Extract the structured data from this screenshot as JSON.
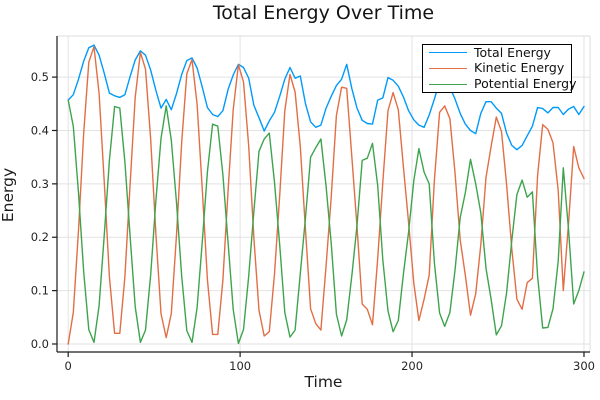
{
  "title": "Total Energy Over Time",
  "axes": {
    "x": {
      "label": "Time",
      "tick_labels": [
        "0",
        "100",
        "200",
        "300"
      ],
      "tick_values": [
        0,
        100,
        200,
        300
      ]
    },
    "y": {
      "label": "Energy",
      "tick_labels": [
        "0.0",
        "0.1",
        "0.2",
        "0.3",
        "0.4",
        "0.5"
      ],
      "tick_values": [
        0,
        0.1,
        0.2,
        0.3,
        0.4,
        0.5
      ]
    }
  },
  "legend": {
    "position": "top-right",
    "entries": [
      {
        "label": "Total Energy",
        "color": "#009AFA"
      },
      {
        "label": "Kinetic Energy",
        "color": "#E26E46"
      },
      {
        "label": "Potential Energy",
        "color": "#3DA44D"
      }
    ]
  },
  "colors": {
    "axis": "#1b1b1b",
    "grid": "#e2e2e2",
    "frame_light": "#dcdcdc",
    "tick_text": "#262626",
    "background": "#ffffff",
    "legend_border": "#000000"
  },
  "chart_data": {
    "type": "line",
    "title": "Total Energy Over Time",
    "xlabel": "Time",
    "ylabel": "Energy",
    "xlim": [
      -6.5,
      303.5
    ],
    "ylim": [
      -0.015,
      0.577
    ],
    "grid": true,
    "legend_position": "top-right",
    "x": [
      0,
      3,
      6,
      9,
      12,
      15,
      18,
      21,
      24,
      27,
      30,
      33,
      36,
      39,
      42,
      45,
      48,
      51,
      54,
      57,
      60,
      63,
      66,
      69,
      72,
      75,
      78,
      81,
      84,
      87,
      90,
      93,
      96,
      99,
      102,
      105,
      108,
      111,
      114,
      117,
      120,
      123,
      126,
      129,
      132,
      135,
      138,
      141,
      144,
      147,
      150,
      153,
      156,
      159,
      162,
      165,
      168,
      171,
      174,
      177,
      180,
      183,
      186,
      189,
      192,
      195,
      198,
      201,
      204,
      207,
      210,
      213,
      216,
      219,
      222,
      225,
      228,
      231,
      234,
      237,
      240,
      243,
      246,
      249,
      252,
      255,
      258,
      261,
      264,
      267,
      270,
      273,
      276,
      279,
      282,
      285,
      288,
      291,
      294,
      297,
      300
    ],
    "series": [
      {
        "name": "Total Energy",
        "color": "#009AFA",
        "values": [
          0.457,
          0.467,
          0.496,
          0.53,
          0.555,
          0.56,
          0.541,
          0.507,
          0.47,
          0.465,
          0.462,
          0.467,
          0.501,
          0.532,
          0.549,
          0.541,
          0.513,
          0.475,
          0.442,
          0.458,
          0.439,
          0.469,
          0.505,
          0.531,
          0.536,
          0.517,
          0.481,
          0.443,
          0.43,
          0.426,
          0.437,
          0.477,
          0.504,
          0.524,
          0.518,
          0.498,
          0.447,
          0.424,
          0.399,
          0.418,
          0.434,
          0.464,
          0.496,
          0.518,
          0.498,
          0.502,
          0.451,
          0.416,
          0.406,
          0.41,
          0.442,
          0.464,
          0.484,
          0.496,
          0.524,
          0.478,
          0.442,
          0.419,
          0.413,
          0.412,
          0.457,
          0.461,
          0.499,
          0.494,
          0.483,
          0.463,
          0.437,
          0.42,
          0.41,
          0.406,
          0.429,
          0.459,
          0.492,
          0.479,
          0.481,
          0.459,
          0.432,
          0.412,
          0.4,
          0.394,
          0.432,
          0.454,
          0.454,
          0.442,
          0.432,
          0.395,
          0.372,
          0.364,
          0.372,
          0.39,
          0.408,
          0.443,
          0.441,
          0.433,
          0.443,
          0.443,
          0.43,
          0.44,
          0.445,
          0.43,
          0.445
        ]
      },
      {
        "name": "Kinetic Energy",
        "color": "#E26E46",
        "values": [
          0.0,
          0.059,
          0.213,
          0.395,
          0.528,
          0.557,
          0.469,
          0.302,
          0.126,
          0.02,
          0.02,
          0.126,
          0.299,
          0.462,
          0.546,
          0.515,
          0.383,
          0.206,
          0.057,
          0.012,
          0.057,
          0.204,
          0.378,
          0.506,
          0.533,
          0.449,
          0.289,
          0.121,
          0.018,
          0.018,
          0.12,
          0.288,
          0.439,
          0.523,
          0.491,
          0.371,
          0.198,
          0.063,
          0.015,
          0.023,
          0.131,
          0.278,
          0.437,
          0.505,
          0.472,
          0.37,
          0.216,
          0.066,
          0.038,
          0.026,
          0.147,
          0.275,
          0.428,
          0.481,
          0.479,
          0.349,
          0.22,
          0.075,
          0.065,
          0.036,
          0.16,
          0.303,
          0.437,
          0.471,
          0.439,
          0.332,
          0.227,
          0.114,
          0.044,
          0.084,
          0.129,
          0.307,
          0.434,
          0.446,
          0.422,
          0.321,
          0.195,
          0.129,
          0.054,
          0.094,
          0.186,
          0.312,
          0.37,
          0.425,
          0.398,
          0.299,
          0.178,
          0.084,
          0.065,
          0.115,
          0.123,
          0.316,
          0.411,
          0.402,
          0.377,
          0.288,
          0.1,
          0.225,
          0.37,
          0.33,
          0.31
        ]
      },
      {
        "name": "Potential Energy",
        "color": "#3DA44D",
        "values": [
          0.457,
          0.408,
          0.283,
          0.135,
          0.027,
          0.003,
          0.072,
          0.205,
          0.344,
          0.445,
          0.442,
          0.341,
          0.202,
          0.07,
          0.003,
          0.026,
          0.13,
          0.269,
          0.385,
          0.446,
          0.382,
          0.265,
          0.127,
          0.025,
          0.003,
          0.068,
          0.192,
          0.322,
          0.412,
          0.408,
          0.317,
          0.189,
          0.065,
          0.001,
          0.027,
          0.127,
          0.249,
          0.361,
          0.384,
          0.395,
          0.303,
          0.186,
          0.059,
          0.013,
          0.026,
          0.132,
          0.235,
          0.35,
          0.368,
          0.384,
          0.295,
          0.189,
          0.056,
          0.015,
          0.045,
          0.129,
          0.222,
          0.344,
          0.348,
          0.376,
          0.297,
          0.158,
          0.062,
          0.023,
          0.044,
          0.131,
          0.21,
          0.306,
          0.366,
          0.322,
          0.3,
          0.152,
          0.058,
          0.033,
          0.059,
          0.138,
          0.237,
          0.283,
          0.346,
          0.3,
          0.246,
          0.142,
          0.084,
          0.017,
          0.034,
          0.096,
          0.194,
          0.28,
          0.307,
          0.275,
          0.285,
          0.127,
          0.03,
          0.031,
          0.066,
          0.155,
          0.33,
          0.215,
          0.075,
          0.1,
          0.135
        ]
      }
    ]
  }
}
